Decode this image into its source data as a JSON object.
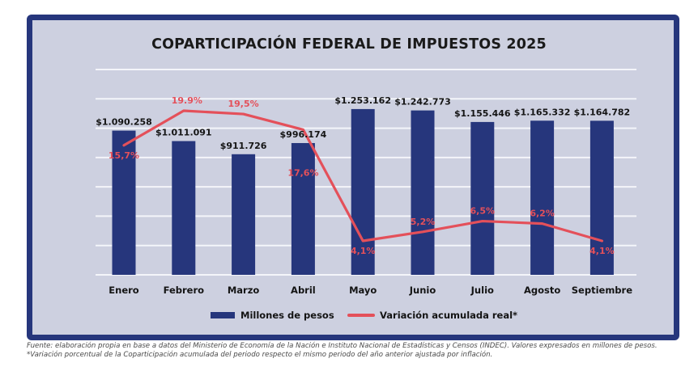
{
  "chart_data": {
    "type": "bar",
    "title": "COPARTICIPACIÓN FEDERAL DE IMPUESTOS 2025",
    "categories": [
      "Enero",
      "Febrero",
      "Marzo",
      "Abril",
      "Mayo",
      "Junio",
      "Julio",
      "Agosto",
      "Septiembre"
    ],
    "series": [
      {
        "name": "Millones de pesos",
        "type": "bar",
        "color": "#26367c",
        "values": [
          1090258,
          1011091,
          911726,
          996174,
          1253162,
          1242773,
          1155446,
          1165332,
          1164782
        ],
        "labels": [
          "$1.090.258",
          "$1.011.091",
          "$911.726",
          "$996.174",
          "$1.253.162",
          "$1.242.773",
          "$1.155.446",
          "$1.165.332",
          "$1.164.782"
        ]
      },
      {
        "name": "Variación acumulada real*",
        "type": "line",
        "color": "#e4505a",
        "values": [
          15.7,
          19.9,
          19.5,
          17.6,
          4.1,
          5.2,
          6.5,
          6.2,
          4.1
        ],
        "labels": [
          "15,7%",
          "19.9%",
          "19,5%",
          "17,6%",
          "4,1%",
          "5,2%",
          "6,5%",
          "6,2%",
          "4,1%"
        ]
      }
    ],
    "xlabel": "",
    "ylabel": "",
    "ylim_bars": [
      0,
      1400000
    ],
    "ylim_line": [
      0,
      22
    ],
    "grid": true,
    "legend": "bottom-center",
    "background_color": "#cdd0e0",
    "frame_color": "#26367c"
  },
  "legend": {
    "bars_label": "Millones de pesos",
    "line_label": "Variación acumulada real*"
  },
  "footnotes": {
    "source": "Fuente: elaboración propia en base a datos del Ministerio de Economía de la Nación e Instituto Nacional de Estadísticas y Censos (INDEC). Valores expresados en millones de pesos.",
    "note": "*Variación porcentual de la Coparticipación acumulada del periodo respecto el mismo periodo del año anterior ajustada por inflación."
  }
}
